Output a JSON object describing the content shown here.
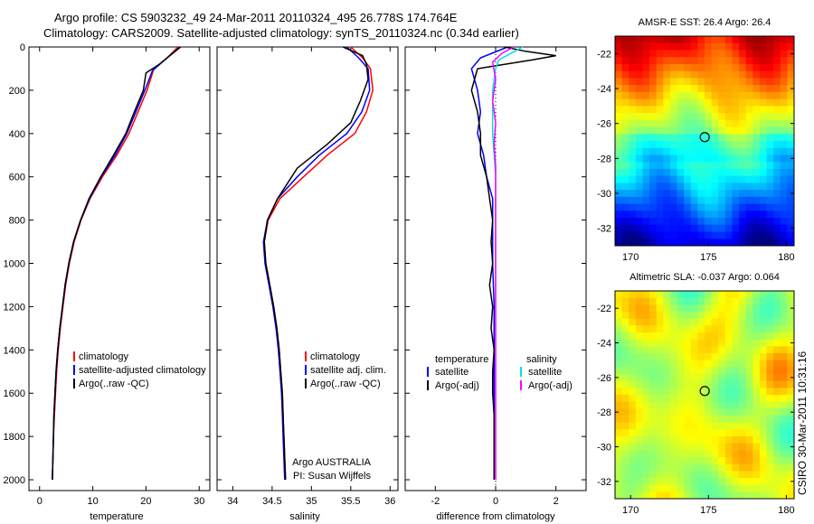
{
  "title_line1": "Argo profile: CS 5903232_49 24-Mar-2011 20110324_495 26.778S 174.764E",
  "title_line2": "Climatology: CARS2009. Satellite-adjusted climatology: synTS_20110324.nc (0.34d earlier)",
  "credit": "CSIRO 30-Mar-2011 10:31:16",
  "colors": {
    "red": "#ff0000",
    "blue": "#0000ff",
    "black": "#000000",
    "cyan": "#00e0e0",
    "magenta": "#ff00ff"
  },
  "chart_data": [
    {
      "id": "temperature",
      "type": "line",
      "xlabel": "temperature",
      "ylabel": "",
      "xlim": [
        -2,
        32
      ],
      "ylim": [
        2050,
        0
      ],
      "xticks": [
        0,
        10,
        20,
        30
      ],
      "yticks": [
        0,
        200,
        400,
        600,
        800,
        1000,
        1200,
        1400,
        1600,
        1800,
        2000
      ],
      "legend": [
        "climatology",
        "satellite-adjusted climatology",
        "Argo(..raw -QC)"
      ],
      "series": [
        {
          "name": "climatology",
          "color": "red",
          "points": [
            [
              26.0,
              0
            ],
            [
              24.0,
              50
            ],
            [
              21.5,
              100
            ],
            [
              20.2,
              200
            ],
            [
              18.5,
              300
            ],
            [
              16.8,
              400
            ],
            [
              14.5,
              500
            ],
            [
              11.8,
              600
            ],
            [
              9.5,
              700
            ],
            [
              7.8,
              800
            ],
            [
              6.5,
              900
            ],
            [
              5.6,
              1000
            ],
            [
              4.9,
              1100
            ],
            [
              4.4,
              1200
            ],
            [
              3.9,
              1300
            ],
            [
              3.5,
              1400
            ],
            [
              3.2,
              1500
            ],
            [
              3.0,
              1600
            ],
            [
              2.8,
              1700
            ],
            [
              2.6,
              1800
            ],
            [
              2.5,
              1900
            ],
            [
              2.4,
              2000
            ]
          ]
        },
        {
          "name": "satellite-adjusted climatology",
          "color": "blue",
          "points": [
            [
              26.4,
              0
            ],
            [
              23.5,
              60
            ],
            [
              21.2,
              110
            ],
            [
              19.8,
              200
            ],
            [
              18.1,
              300
            ],
            [
              16.4,
              400
            ],
            [
              14.2,
              500
            ],
            [
              11.6,
              600
            ],
            [
              9.4,
              700
            ],
            [
              7.7,
              800
            ],
            [
              6.4,
              900
            ],
            [
              5.5,
              1000
            ],
            [
              4.8,
              1100
            ],
            [
              4.3,
              1200
            ],
            [
              3.8,
              1300
            ],
            [
              3.4,
              1400
            ],
            [
              3.1,
              1500
            ],
            [
              2.9,
              1600
            ],
            [
              2.7,
              1700
            ],
            [
              2.6,
              1800
            ],
            [
              2.5,
              1900
            ],
            [
              2.4,
              2000
            ]
          ]
        },
        {
          "name": "Argo(..raw -QC)",
          "color": "black",
          "points": [
            [
              26.5,
              0
            ],
            [
              25.0,
              30
            ],
            [
              22.5,
              80
            ],
            [
              20.0,
              120
            ],
            [
              19.5,
              200
            ],
            [
              17.8,
              300
            ],
            [
              16.2,
              400
            ],
            [
              13.9,
              500
            ],
            [
              11.5,
              600
            ],
            [
              9.3,
              700
            ],
            [
              7.7,
              800
            ],
            [
              6.4,
              900
            ],
            [
              5.5,
              1000
            ],
            [
              4.8,
              1100
            ],
            [
              4.3,
              1200
            ],
            [
              3.8,
              1300
            ],
            [
              3.4,
              1400
            ],
            [
              3.1,
              1500
            ],
            [
              2.9,
              1600
            ],
            [
              2.7,
              1700
            ],
            [
              2.6,
              1800
            ],
            [
              2.5,
              1900
            ],
            [
              2.4,
              2000
            ]
          ]
        }
      ]
    },
    {
      "id": "salinity",
      "type": "line",
      "xlabel": "salinity",
      "ylabel": "",
      "xlim": [
        33.8,
        36.1
      ],
      "ylim": [
        2050,
        0
      ],
      "xticks": [
        34,
        34.5,
        35,
        35.5,
        36
      ],
      "yticks": [
        0,
        200,
        400,
        600,
        800,
        1000,
        1200,
        1400,
        1600,
        1800,
        2000
      ],
      "legend": [
        "climatology",
        "satellite adj. clim.",
        "Argo(..raw -QC)"
      ],
      "annotation": [
        "Argo AUSTRALIA",
        "PI: Susan Wijffels"
      ],
      "series": [
        {
          "name": "climatology",
          "color": "red",
          "points": [
            [
              35.5,
              0
            ],
            [
              35.65,
              50
            ],
            [
              35.75,
              100
            ],
            [
              35.78,
              200
            ],
            [
              35.7,
              300
            ],
            [
              35.55,
              400
            ],
            [
              35.2,
              500
            ],
            [
              34.9,
              600
            ],
            [
              34.6,
              700
            ],
            [
              34.45,
              800
            ],
            [
              34.4,
              900
            ],
            [
              34.42,
              1000
            ],
            [
              34.47,
              1100
            ],
            [
              34.52,
              1200
            ],
            [
              34.56,
              1300
            ],
            [
              34.59,
              1400
            ],
            [
              34.61,
              1500
            ],
            [
              34.63,
              1600
            ],
            [
              34.64,
              1700
            ],
            [
              34.65,
              1800
            ],
            [
              34.66,
              1900
            ],
            [
              34.67,
              2000
            ]
          ]
        },
        {
          "name": "satellite adj. clim.",
          "color": "blue",
          "points": [
            [
              35.45,
              0
            ],
            [
              35.6,
              50
            ],
            [
              35.72,
              100
            ],
            [
              35.74,
              200
            ],
            [
              35.64,
              300
            ],
            [
              35.45,
              400
            ],
            [
              35.1,
              500
            ],
            [
              34.82,
              600
            ],
            [
              34.57,
              700
            ],
            [
              34.44,
              800
            ],
            [
              34.39,
              900
            ],
            [
              34.41,
              1000
            ],
            [
              34.46,
              1100
            ],
            [
              34.51,
              1200
            ],
            [
              34.55,
              1300
            ],
            [
              34.58,
              1400
            ],
            [
              34.6,
              1500
            ],
            [
              34.62,
              1600
            ],
            [
              34.63,
              1700
            ],
            [
              34.64,
              1800
            ],
            [
              34.65,
              1900
            ],
            [
              34.66,
              2000
            ]
          ]
        },
        {
          "name": "Argo(..raw -QC)",
          "color": "black",
          "points": [
            [
              35.4,
              0
            ],
            [
              35.65,
              40
            ],
            [
              35.7,
              80
            ],
            [
              35.72,
              150
            ],
            [
              35.62,
              250
            ],
            [
              35.5,
              350
            ],
            [
              35.2,
              450
            ],
            [
              34.82,
              560
            ],
            [
              34.57,
              700
            ],
            [
              34.44,
              800
            ],
            [
              34.4,
              900
            ],
            [
              34.42,
              1000
            ],
            [
              34.47,
              1100
            ],
            [
              34.52,
              1200
            ],
            [
              34.56,
              1300
            ],
            [
              34.59,
              1400
            ],
            [
              34.61,
              1500
            ],
            [
              34.63,
              1600
            ],
            [
              34.64,
              1700
            ],
            [
              34.65,
              1800
            ],
            [
              34.66,
              1900
            ],
            [
              34.67,
              2000
            ]
          ]
        }
      ]
    },
    {
      "id": "difference",
      "type": "line",
      "xlabel": "difference from climatology",
      "ylabel": "",
      "xlim": [
        -3,
        3
      ],
      "ylim": [
        2050,
        0
      ],
      "xticks": [
        -2,
        0,
        2
      ],
      "yticks": [
        0,
        200,
        400,
        600,
        800,
        1000,
        1200,
        1400,
        1600,
        1800,
        2000
      ],
      "legend_titles": [
        "temperature",
        "salinity"
      ],
      "legend": [
        "satellite",
        "Argo(-adj)",
        "satellite",
        "Argo(-adj)"
      ],
      "series": [
        {
          "name": "temperature satellite",
          "color": "blue",
          "points": [
            [
              0.4,
              0
            ],
            [
              -0.5,
              50
            ],
            [
              -0.8,
              100
            ],
            [
              -0.6,
              200
            ],
            [
              -0.5,
              300
            ],
            [
              -0.6,
              400
            ],
            [
              -0.4,
              500
            ],
            [
              -0.3,
              600
            ],
            [
              -0.1,
              700
            ],
            [
              -0.1,
              800
            ],
            [
              -0.1,
              900
            ],
            [
              -0.1,
              1000
            ],
            [
              -0.05,
              1200
            ],
            [
              -0.05,
              1400
            ],
            [
              -0.05,
              1600
            ],
            [
              -0.05,
              1800
            ],
            [
              -0.05,
              2000
            ]
          ]
        },
        {
          "name": "temperature Argo(-adj)",
          "color": "black",
          "points": [
            [
              0.3,
              0
            ],
            [
              1.0,
              20
            ],
            [
              2.0,
              40
            ],
            [
              1.2,
              60
            ],
            [
              -0.6,
              100
            ],
            [
              -0.8,
              200
            ],
            [
              -0.6,
              300
            ],
            [
              -0.5,
              400
            ],
            [
              -0.5,
              500
            ],
            [
              -0.3,
              600
            ],
            [
              -0.2,
              700
            ],
            [
              -0.1,
              800
            ],
            [
              -0.15,
              900
            ],
            [
              -0.1,
              1000
            ],
            [
              -0.2,
              1100
            ],
            [
              -0.1,
              1200
            ],
            [
              -0.15,
              1300
            ],
            [
              -0.05,
              1400
            ],
            [
              -0.1,
              1500
            ],
            [
              -0.1,
              1600
            ],
            [
              -0.05,
              1700
            ],
            [
              -0.05,
              1800
            ],
            [
              -0.05,
              1900
            ],
            [
              -0.05,
              2000
            ]
          ]
        },
        {
          "name": "salinity satellite",
          "color": "cyan",
          "points": [
            [
              0.9,
              0
            ],
            [
              0.5,
              30
            ],
            [
              0.1,
              60
            ],
            [
              0.0,
              100
            ],
            [
              -0.1,
              200
            ],
            [
              -0.1,
              400
            ],
            [
              0.0,
              600
            ],
            [
              0.0,
              800
            ],
            [
              0.0,
              1000
            ],
            [
              0.0,
              1200
            ],
            [
              0.0,
              1400
            ],
            [
              0.0,
              1600
            ],
            [
              0.0,
              1800
            ],
            [
              0.0,
              2000
            ]
          ]
        },
        {
          "name": "salinity Argo(-adj)",
          "color": "magenta",
          "points": [
            [
              0.6,
              0
            ],
            [
              0.2,
              30
            ],
            [
              -0.1,
              70
            ],
            [
              0.0,
              150
            ],
            [
              -0.1,
              250
            ],
            [
              0.0,
              350
            ],
            [
              -0.05,
              450
            ],
            [
              0.0,
              550
            ],
            [
              0.0,
              700
            ],
            [
              0.0,
              900
            ],
            [
              0.0,
              1100
            ],
            [
              0.0,
              1300
            ],
            [
              0.0,
              1500
            ],
            [
              0.0,
              1700
            ],
            [
              0.0,
              1900
            ],
            [
              0.0,
              2000
            ]
          ]
        }
      ]
    },
    {
      "id": "sst_map",
      "type": "heatmap",
      "title": "AMSR-E SST: 26.4 Argo: 26.4",
      "xlim": [
        169,
        180.5
      ],
      "ylim": [
        -33,
        -21
      ],
      "xticks": [
        170,
        175,
        180
      ],
      "yticks": [
        -22,
        -24,
        -26,
        -28,
        -30,
        -32
      ],
      "marker": [
        174.76,
        -26.78
      ]
    },
    {
      "id": "sla_map",
      "type": "heatmap",
      "title": "Altimetric SLA: -0.037 Argo: 0.064",
      "xlim": [
        169,
        180.5
      ],
      "ylim": [
        -33,
        -21
      ],
      "xticks": [
        170,
        175,
        180
      ],
      "yticks": [
        -22,
        -24,
        -26,
        -28,
        -30,
        -32
      ],
      "marker": [
        174.76,
        -26.78
      ]
    }
  ]
}
